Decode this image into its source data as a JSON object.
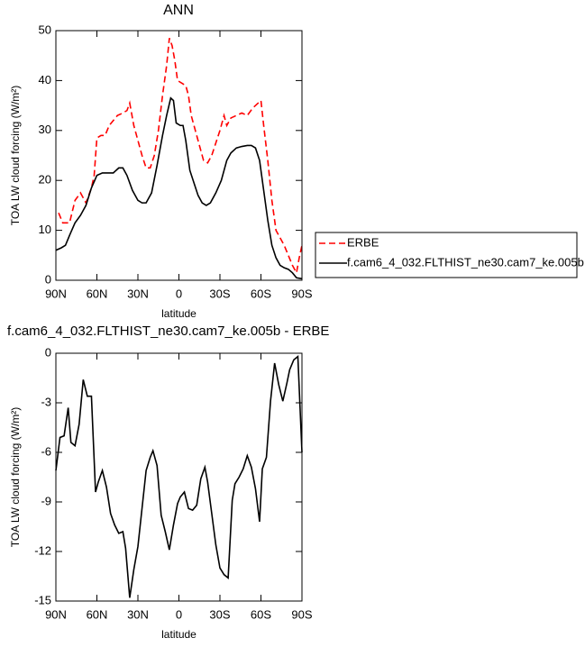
{
  "chart_data": [
    {
      "type": "line",
      "title": "ANN",
      "xlabel": "latitude",
      "ylabel": "TOA LW cloud forcing (W/m²)",
      "xlim": [
        90,
        -90
      ],
      "xticks": [
        {
          "value": 90,
          "label": "90N"
        },
        {
          "value": 60,
          "label": "60N"
        },
        {
          "value": 30,
          "label": "30N"
        },
        0,
        {
          "value": -30,
          "label": "30S"
        },
        {
          "value": -60,
          "label": "60S"
        },
        {
          "value": -90,
          "label": "90S"
        }
      ],
      "ylim": [
        0,
        50
      ],
      "yticks": [
        0,
        10,
        20,
        30,
        40,
        50
      ],
      "legend": "right",
      "series": [
        {
          "name": "ERBE",
          "color": "#ff0000",
          "dash": true,
          "x": [
            88,
            85,
            80,
            76,
            72,
            68,
            64,
            62,
            60,
            57,
            54,
            51,
            48,
            45,
            41,
            38,
            36,
            33,
            30,
            27,
            24,
            21,
            18,
            15,
            12,
            9,
            7,
            5,
            3,
            1,
            -2,
            -5,
            -7,
            -9,
            -12,
            -15,
            -18,
            -21,
            -24,
            -27,
            -30,
            -33,
            -35,
            -38,
            -42,
            -46,
            -50,
            -54,
            -58,
            -60,
            -62,
            -65,
            -68,
            -71,
            -74,
            -77,
            -80,
            -83,
            -86,
            -88,
            -90
          ],
          "values": [
            13.5,
            11.5,
            11.5,
            16,
            17.5,
            15.5,
            18.5,
            21,
            28.5,
            29,
            29,
            31,
            32,
            33,
            33.5,
            34,
            35.5,
            31,
            28,
            25,
            22.5,
            22.5,
            25,
            30,
            37,
            43,
            48.5,
            47,
            44,
            40,
            39.5,
            39,
            37,
            33,
            30,
            27,
            24,
            23.5,
            25,
            27.5,
            30,
            33,
            31,
            32.5,
            33,
            33.5,
            33,
            34.5,
            35.5,
            36,
            31,
            24,
            16,
            10,
            8.5,
            7,
            5,
            3,
            1.5,
            4.5,
            7
          ]
        },
        {
          "name": "f.cam6_4_032.FLTHIST_ne30.cam7_ke.005b",
          "color": "#000000",
          "dash": false,
          "x": [
            90,
            86,
            83,
            80,
            76,
            72,
            68,
            64,
            60,
            56,
            52,
            48,
            44,
            41,
            38,
            34,
            30,
            27,
            24,
            20,
            16,
            12,
            9,
            6,
            4,
            2,
            -1,
            -3,
            -5,
            -8,
            -11,
            -14,
            -17,
            -20,
            -23,
            -27,
            -31,
            -35,
            -38,
            -42,
            -46,
            -50,
            -53,
            -56,
            -59,
            -62,
            -65,
            -68,
            -71,
            -74,
            -77,
            -80,
            -83,
            -86,
            -90
          ],
          "values": [
            6,
            6.5,
            7,
            9,
            11.5,
            13,
            15,
            18.5,
            21,
            21.5,
            21.5,
            21.5,
            22.5,
            22.5,
            21,
            18,
            16,
            15.5,
            15.5,
            17.5,
            23,
            29,
            33,
            36.5,
            36,
            31.5,
            31,
            31,
            28,
            22,
            19.5,
            17,
            15.5,
            15,
            15.5,
            17.5,
            20,
            24,
            25.5,
            26.5,
            26.8,
            27,
            27,
            26.5,
            24,
            18,
            12,
            7,
            4.5,
            3,
            2.5,
            2.2,
            1.5,
            0.5,
            0.3
          ]
        }
      ]
    },
    {
      "type": "line",
      "title": "f.cam6_4_032.FLTHIST_ne30.cam7_ke.005b - ERBE",
      "xlabel": "latitude",
      "ylabel": "TOA LW cloud forcing (W/m²)",
      "xlim": [
        90,
        -90
      ],
      "xticks": [
        {
          "value": 90,
          "label": "90N"
        },
        {
          "value": 60,
          "label": "60N"
        },
        {
          "value": 30,
          "label": "30N"
        },
        0,
        {
          "value": -30,
          "label": "30S"
        },
        {
          "value": -60,
          "label": "60S"
        },
        {
          "value": -90,
          "label": "90S"
        }
      ],
      "ylim": [
        -15,
        0
      ],
      "yticks": [
        0,
        -3,
        -6,
        -9,
        -12,
        -15
      ],
      "series": [
        {
          "color": "#000000",
          "dash": false,
          "x": [
            90,
            87,
            84,
            81,
            79,
            76,
            73,
            70,
            67,
            64,
            61,
            59,
            56,
            53,
            50,
            47,
            44,
            41,
            39,
            36,
            33,
            30,
            27,
            24,
            21,
            19,
            16,
            13,
            10,
            7,
            4,
            1,
            -1,
            -4,
            -7,
            -10,
            -13,
            -16,
            -19,
            -21,
            -24,
            -27,
            -30,
            -33,
            -36,
            -39,
            -41,
            -44,
            -47,
            -50,
            -53,
            -56,
            -59,
            -61,
            -64,
            -67,
            -70,
            -73,
            -76,
            -79,
            -81,
            -84,
            -87,
            -90
          ],
          "values": [
            -7.1,
            -5.1,
            -5,
            -3.3,
            -5.4,
            -5.6,
            -4.3,
            -1.6,
            -2.6,
            -2.6,
            -8.4,
            -7.8,
            -7.1,
            -8.1,
            -9.7,
            -10.4,
            -10.9,
            -10.8,
            -11.8,
            -14.8,
            -13.1,
            -11.7,
            -9.4,
            -7.1,
            -6.3,
            -5.9,
            -6.8,
            -9.8,
            -10.8,
            -11.9,
            -10.4,
            -9.1,
            -8.7,
            -8.4,
            -9.4,
            -9.5,
            -9.2,
            -7.6,
            -6.9,
            -7.8,
            -9.7,
            -11.6,
            -13,
            -13.4,
            -13.6,
            -8.9,
            -7.9,
            -7.5,
            -7,
            -6.2,
            -6.9,
            -8.2,
            -10.2,
            -7,
            -6.3,
            -2.9,
            -0.6,
            -1.9,
            -2.9,
            -1.8,
            -1,
            -0.4,
            -0.2,
            -6
          ]
        }
      ]
    }
  ]
}
